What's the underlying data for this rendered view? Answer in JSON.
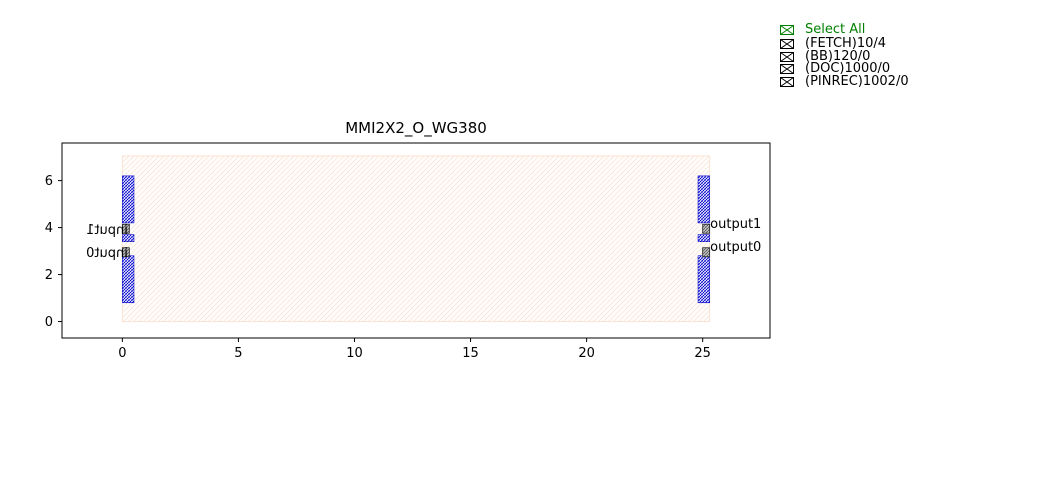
{
  "chart_data": {
    "type": "layout",
    "title": "MMI2X2_O_WG380",
    "xlim": [
      -2.6,
      27.9
    ],
    "ylim": [
      -0.7,
      7.6
    ],
    "xticks": [
      0,
      5,
      10,
      15,
      20,
      25
    ],
    "yticks": [
      0,
      2,
      4,
      6
    ],
    "bounding_box": {
      "x0": 0,
      "y0": 0,
      "x1": 25.3,
      "y1": 7.05,
      "color": "#f4a460"
    },
    "waveguides": [
      {
        "x0": 0,
        "x1": 0.5,
        "y0": 0.8,
        "y1": 2.8
      },
      {
        "x0": 0,
        "x1": 0.5,
        "y0": 3.4,
        "y1": 3.7
      },
      {
        "x0": 0,
        "x1": 0.5,
        "y0": 4.2,
        "y1": 6.2
      },
      {
        "x0": 24.8,
        "x1": 25.3,
        "y0": 0.8,
        "y1": 2.8
      },
      {
        "x0": 24.8,
        "x1": 25.3,
        "y0": 3.4,
        "y1": 3.7
      },
      {
        "x0": 24.8,
        "x1": 25.3,
        "y0": 4.2,
        "y1": 6.2
      }
    ],
    "ports": [
      {
        "name": "input1",
        "x": 0.15,
        "y": 3.95,
        "side": "left"
      },
      {
        "name": "input0",
        "x": 0.15,
        "y": 2.95,
        "side": "left"
      },
      {
        "name": "output1",
        "x": 25.15,
        "y": 3.95,
        "side": "right"
      },
      {
        "name": "output0",
        "x": 25.15,
        "y": 2.95,
        "side": "right"
      }
    ]
  },
  "legend": {
    "select_all": "Select All",
    "items": [
      "(FETCH)10/4",
      "(BB)120/0",
      "(DOC)1000/0",
      "(PINREC)1002/0"
    ]
  },
  "colors": {
    "waveguide": "#0000cc",
    "port": "#555555",
    "select_all": "#008000"
  }
}
